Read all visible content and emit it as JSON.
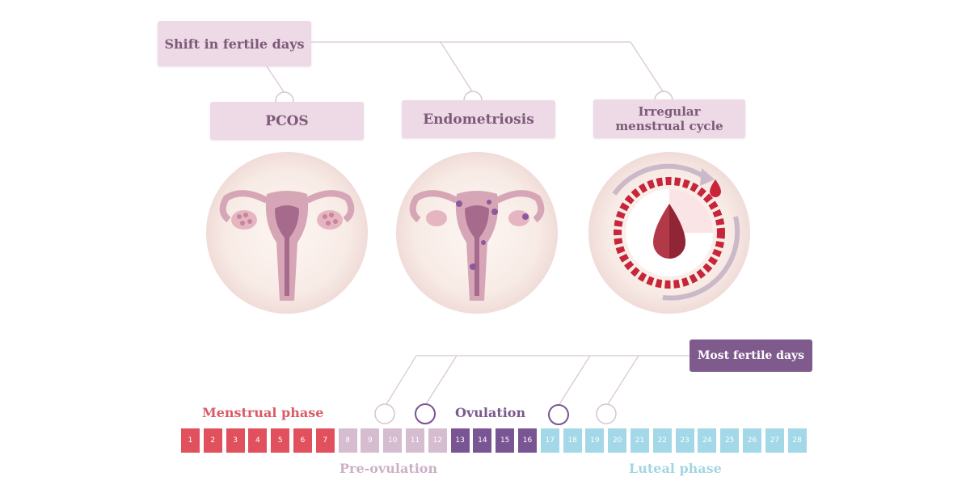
{
  "labels": {
    "shift": "Shift in fertile days",
    "pcos": "PCOS",
    "endometriosis": "Endometriosis",
    "irregular_line1": "Irregular",
    "irregular_line2": "menstrual cycle",
    "most_fertile": "Most fertile days"
  },
  "phases": {
    "menstrual": "Menstrual phase",
    "ovulation": "Ovulation",
    "pre_ovulation": "Pre-ovulation",
    "luteal": "Luteal phase"
  },
  "days": [
    {
      "n": "1",
      "phase": "menstrual"
    },
    {
      "n": "2",
      "phase": "menstrual"
    },
    {
      "n": "3",
      "phase": "menstrual"
    },
    {
      "n": "4",
      "phase": "menstrual"
    },
    {
      "n": "5",
      "phase": "menstrual"
    },
    {
      "n": "6",
      "phase": "menstrual"
    },
    {
      "n": "7",
      "phase": "menstrual"
    },
    {
      "n": "8",
      "phase": "preov"
    },
    {
      "n": "9",
      "phase": "preov"
    },
    {
      "n": "10",
      "phase": "preov"
    },
    {
      "n": "11",
      "phase": "preov"
    },
    {
      "n": "12",
      "phase": "preov"
    },
    {
      "n": "13",
      "phase": "ovulation"
    },
    {
      "n": "14",
      "phase": "ovulation"
    },
    {
      "n": "15",
      "phase": "ovulation"
    },
    {
      "n": "16",
      "phase": "ovulation"
    },
    {
      "n": "17",
      "phase": "luteal"
    },
    {
      "n": "18",
      "phase": "luteal"
    },
    {
      "n": "19",
      "phase": "luteal"
    },
    {
      "n": "20",
      "phase": "luteal"
    },
    {
      "n": "21",
      "phase": "luteal"
    },
    {
      "n": "22",
      "phase": "luteal"
    },
    {
      "n": "23",
      "phase": "luteal"
    },
    {
      "n": "24",
      "phase": "luteal"
    },
    {
      "n": "25",
      "phase": "luteal"
    },
    {
      "n": "26",
      "phase": "luteal"
    },
    {
      "n": "27",
      "phase": "luteal"
    },
    {
      "n": "28",
      "phase": "luteal"
    }
  ],
  "colors": {
    "menstrual": "#e0515d",
    "pre_ovulation": "#d5bccf",
    "ovulation": "#7a5594",
    "luteal": "#a3d8e8",
    "label_box": "#eddae6",
    "accent": "#7f5b8d"
  },
  "icons": [
    "uterus-pcos-icon",
    "uterus-endometriosis-icon",
    "cycle-clock-icon",
    "blood-drop-icon"
  ]
}
